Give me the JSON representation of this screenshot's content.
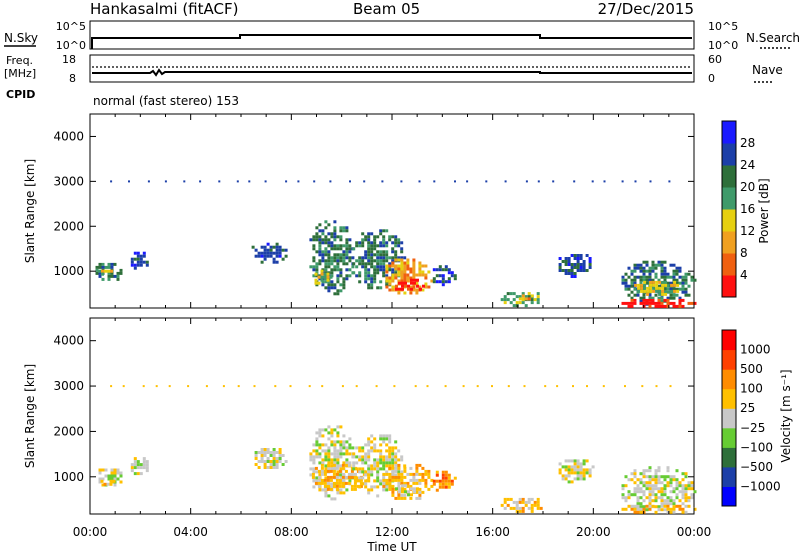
{
  "header": {
    "station": "Hankasalmi (fitACF)",
    "beam": "Beam 05",
    "date": "27/Dec/2015"
  },
  "status_panels": {
    "nsky": {
      "label": "N.Sky",
      "ticks": [
        "10^5",
        "10^0"
      ]
    },
    "nsearch": {
      "label": "N.Search",
      "ticks": [
        "10^5",
        "10^0"
      ]
    },
    "freq": {
      "label_line1": "Freq.",
      "label_line2": "[MHz]",
      "ticks": [
        "18",
        "8"
      ]
    },
    "nave": {
      "label": "Nave",
      "ticks": [
        "60",
        "0"
      ]
    },
    "cpid": {
      "label": "CPID",
      "program": "normal (fast stereo) 153"
    }
  },
  "colors": {
    "power": [
      "#1a1aff",
      "#1c3fa8",
      "#2e6f3a",
      "#3f9a6a",
      "#e6d010",
      "#f0a020",
      "#f06010",
      "#ff1010"
    ],
    "velocity": [
      "#ff0000",
      "#ff4000",
      "#ff8c00",
      "#ffc000",
      "#c8c8c8",
      "#66cc33",
      "#2e6f3a",
      "#1c3fa8",
      "#0000ff"
    ]
  },
  "chart_data": [
    {
      "type": "heatmap",
      "quantity": "power",
      "xlabel": "",
      "ylabel": "Slant Range [km]",
      "x_ticks": [
        "00:00",
        "04:00",
        "08:00",
        "12:00",
        "16:00",
        "20:00",
        "00:00"
      ],
      "xlim_hours": [
        0,
        24
      ],
      "ylim_km": [
        180,
        4500
      ],
      "y_ticks": [
        1000,
        2000,
        3000,
        4000
      ],
      "colorbar": {
        "label": "Power [dB]",
        "ticks": [
          "28",
          "24",
          "20",
          "16",
          "12",
          "8",
          "4"
        ]
      },
      "patches": [
        {
          "t0": 0.1,
          "t1": 1.3,
          "r0": 800,
          "r1": 1250,
          "level": 2
        },
        {
          "t0": 0.2,
          "t1": 0.9,
          "r0": 950,
          "r1": 1100,
          "level": 4
        },
        {
          "t0": 1.5,
          "t1": 2.3,
          "r0": 1050,
          "r1": 1500,
          "level": 1
        },
        {
          "t0": 6.3,
          "t1": 7.8,
          "r0": 1200,
          "r1": 1700,
          "level": 1
        },
        {
          "t0": 8.6,
          "t1": 10.5,
          "r0": 500,
          "r1": 2200,
          "level": 2
        },
        {
          "t0": 8.8,
          "t1": 9.6,
          "r0": 700,
          "r1": 1100,
          "level": 4
        },
        {
          "t0": 10.3,
          "t1": 12.5,
          "r0": 600,
          "r1": 2000,
          "level": 2
        },
        {
          "t0": 11.5,
          "t1": 13.6,
          "r0": 500,
          "r1": 1350,
          "level": 5
        },
        {
          "t0": 12.0,
          "t1": 13.2,
          "r0": 550,
          "r1": 900,
          "level": 7
        },
        {
          "t0": 13.5,
          "t1": 14.5,
          "r0": 700,
          "r1": 1200,
          "level": 1
        },
        {
          "t0": 16.2,
          "t1": 18.0,
          "r0": 250,
          "r1": 600,
          "level": 3
        },
        {
          "t0": 16.8,
          "t1": 17.6,
          "r0": 350,
          "r1": 550,
          "level": 5
        },
        {
          "t0": 18.5,
          "t1": 20.0,
          "r0": 900,
          "r1": 1450,
          "level": 1
        },
        {
          "t0": 21.0,
          "t1": 24.0,
          "r0": 250,
          "r1": 1300,
          "level": 2
        },
        {
          "t0": 21.5,
          "t1": 23.5,
          "r0": 500,
          "r1": 850,
          "level": 4
        },
        {
          "t0": 21.0,
          "t1": 24.0,
          "r0": 200,
          "r1": 450,
          "level": 7
        }
      ]
    },
    {
      "type": "heatmap",
      "quantity": "velocity",
      "xlabel": "Time UT",
      "ylabel": "Slant Range [km]",
      "x_ticks": [
        "00:00",
        "04:00",
        "08:00",
        "12:00",
        "16:00",
        "20:00",
        "00:00"
      ],
      "xlim_hours": [
        0,
        24
      ],
      "ylim_km": [
        180,
        4500
      ],
      "y_ticks": [
        1000,
        2000,
        3000,
        4000
      ],
      "colorbar": {
        "label": "Velocity [m s⁻¹]",
        "ticks": [
          "1000",
          "500",
          "100",
          "25",
          "−25",
          "−100",
          "−500",
          "−1000"
        ]
      },
      "patches": [
        {
          "t0": 0.1,
          "t1": 1.3,
          "r0": 800,
          "r1": 1250,
          "level": 4
        },
        {
          "t0": 0.3,
          "t1": 1.0,
          "r0": 850,
          "r1": 1000,
          "level": 3
        },
        {
          "t0": 1.5,
          "t1": 2.3,
          "r0": 1050,
          "r1": 1500,
          "level": 4
        },
        {
          "t0": 6.3,
          "t1": 7.8,
          "r0": 1200,
          "r1": 1700,
          "level": 4
        },
        {
          "t0": 8.6,
          "t1": 10.5,
          "r0": 500,
          "r1": 2200,
          "level": 4
        },
        {
          "t0": 8.7,
          "t1": 11.0,
          "r0": 700,
          "r1": 1350,
          "level": 3
        },
        {
          "t0": 10.3,
          "t1": 12.5,
          "r0": 600,
          "r1": 2000,
          "level": 4
        },
        {
          "t0": 11.5,
          "t1": 13.6,
          "r0": 500,
          "r1": 1350,
          "level": 3
        },
        {
          "t0": 12.0,
          "t1": 13.0,
          "r0": 600,
          "r1": 900,
          "level": 4
        },
        {
          "t0": 13.5,
          "t1": 14.5,
          "r0": 700,
          "r1": 1200,
          "level": 2
        },
        {
          "t0": 16.2,
          "t1": 18.0,
          "r0": 250,
          "r1": 600,
          "level": 3
        },
        {
          "t0": 18.5,
          "t1": 20.0,
          "r0": 900,
          "r1": 1450,
          "level": 4
        },
        {
          "t0": 21.0,
          "t1": 24.0,
          "r0": 250,
          "r1": 1300,
          "level": 4
        },
        {
          "t0": 21.0,
          "t1": 24.0,
          "r0": 200,
          "r1": 450,
          "level": 3
        }
      ]
    }
  ]
}
